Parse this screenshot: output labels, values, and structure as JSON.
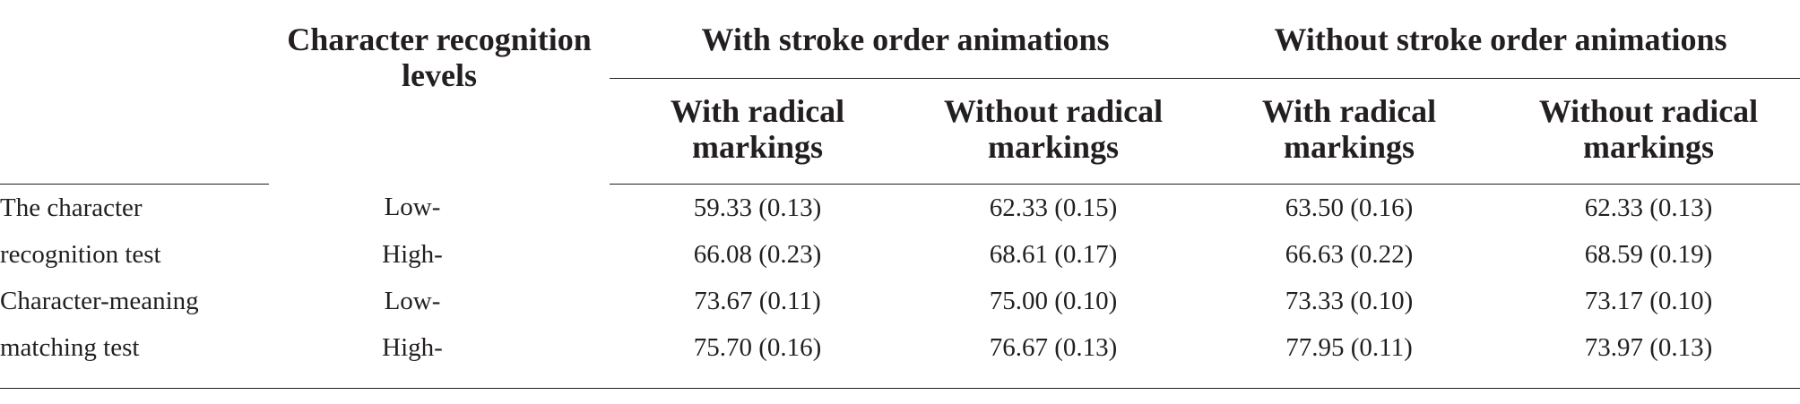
{
  "table": {
    "header": {
      "recognition_levels": "Character recognition levels",
      "group_with_animations": "With stroke order animations",
      "group_without_animations": "Without stroke order animations",
      "sub_with_radical": "With radical markings",
      "sub_without_radical": "Without radical markings"
    },
    "rows": [
      {
        "label": "The character",
        "level": "Low-",
        "values": [
          "59.33 (0.13)",
          "62.33 (0.15)",
          "63.50 (0.16)",
          "62.33 (0.13)"
        ]
      },
      {
        "label": "recognition test",
        "level": "High-",
        "values": [
          "66.08 (0.23)",
          "68.61 (0.17)",
          "66.63 (0.22)",
          "68.59 (0.19)"
        ]
      },
      {
        "label": "Character-meaning",
        "level": "Low-",
        "values": [
          "73.67 (0.11)",
          "75.00 (0.10)",
          "73.33 (0.10)",
          "73.17 (0.10)"
        ]
      },
      {
        "label": "matching test",
        "level": "High-",
        "values": [
          "75.70 (0.16)",
          "76.67 (0.13)",
          "77.95 (0.11)",
          "73.97 (0.13)"
        ]
      }
    ]
  }
}
